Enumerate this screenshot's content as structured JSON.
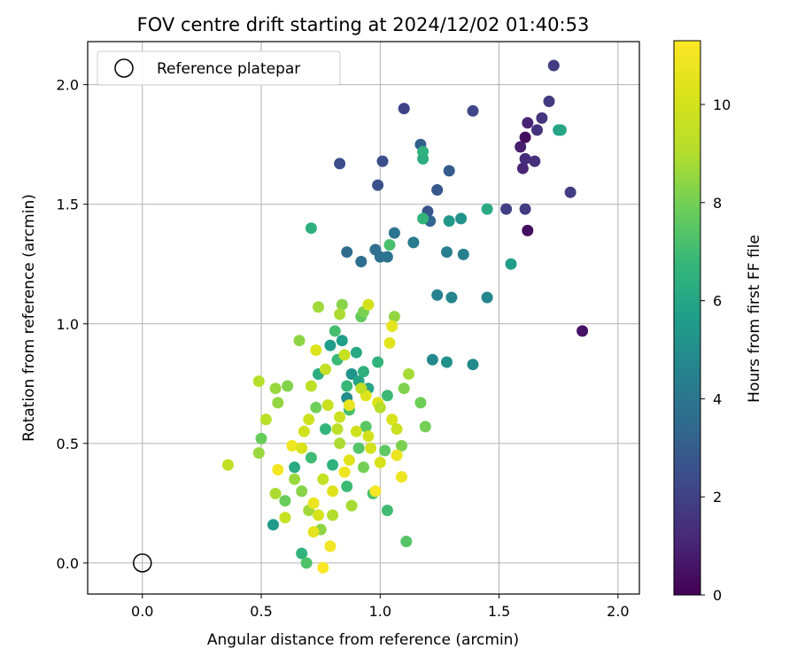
{
  "chart_data": {
    "type": "scatter",
    "title": "FOV centre drift starting at 2024/12/02 01:40:53",
    "xlabel": "Angular distance from reference (arcmin)",
    "ylabel": "Rotation from reference (arcmin)",
    "xlim": [
      -0.23,
      2.09
    ],
    "ylim": [
      -0.13,
      2.18
    ],
    "x_ticks": [
      0.0,
      0.5,
      1.0,
      1.5,
      2.0
    ],
    "y_ticks": [
      0.0,
      0.5,
      1.0,
      1.5,
      2.0
    ],
    "x_tick_labels": [
      "0.0",
      "0.5",
      "1.0",
      "1.5",
      "2.0"
    ],
    "y_tick_labels": [
      "0.0",
      "0.5",
      "1.0",
      "1.5",
      "2.0"
    ],
    "grid": true,
    "colormap": "viridis",
    "colorbar": {
      "label": "Hours from first FF file",
      "range": [
        0,
        11.3
      ],
      "ticks": [
        0,
        2,
        4,
        6,
        8,
        10
      ],
      "tick_labels": [
        "0",
        "2",
        "4",
        "6",
        "8",
        "10"
      ]
    },
    "legend": {
      "position": "top-left",
      "entries": [
        "Reference platepar"
      ]
    },
    "reference_point": {
      "x": 0.0,
      "y": 0.0
    },
    "series": [
      {
        "values": [
          [
            1.61,
            1.78,
            0.3
          ],
          [
            1.62,
            1.39,
            0.4
          ],
          [
            1.85,
            0.97,
            0.5
          ],
          [
            1.59,
            1.74,
            0.8
          ],
          [
            1.62,
            1.84,
            1.0
          ],
          [
            1.6,
            1.65,
            1.1
          ],
          [
            1.61,
            1.69,
            1.3
          ],
          [
            1.65,
            1.68,
            1.4
          ],
          [
            1.66,
            1.81,
            1.5
          ],
          [
            1.68,
            1.86,
            1.6
          ],
          [
            1.71,
            1.93,
            1.7
          ],
          [
            1.73,
            2.08,
            1.8
          ],
          [
            1.8,
            1.55,
            1.9
          ],
          [
            1.61,
            1.48,
            1.8
          ],
          [
            1.53,
            1.48,
            2.0
          ],
          [
            1.1,
            1.9,
            2.1
          ],
          [
            1.39,
            1.89,
            2.2
          ],
          [
            0.83,
            1.67,
            2.4
          ],
          [
            1.01,
            1.68,
            2.5
          ],
          [
            0.99,
            1.58,
            2.6
          ],
          [
            1.2,
            1.47,
            2.7
          ],
          [
            1.24,
            1.56,
            2.8
          ],
          [
            1.29,
            1.64,
            3.0
          ],
          [
            1.17,
            1.75,
            3.1
          ],
          [
            1.21,
            1.43,
            3.3
          ],
          [
            0.86,
            1.3,
            3.5
          ],
          [
            0.92,
            1.26,
            3.6
          ],
          [
            0.98,
            1.31,
            3.7
          ],
          [
            1.0,
            1.28,
            3.8
          ],
          [
            1.03,
            1.28,
            3.9
          ],
          [
            1.06,
            1.38,
            4.0
          ],
          [
            1.14,
            1.34,
            4.2
          ],
          [
            1.28,
            1.3,
            4.3
          ],
          [
            1.35,
            1.29,
            4.4
          ],
          [
            1.24,
            1.12,
            4.5
          ],
          [
            1.3,
            1.11,
            4.6
          ],
          [
            1.45,
            1.11,
            4.7
          ],
          [
            1.22,
            0.85,
            4.8
          ],
          [
            1.39,
            0.83,
            4.9
          ],
          [
            1.28,
            0.84,
            5.1
          ],
          [
            1.34,
            1.44,
            5.2
          ],
          [
            1.29,
            1.43,
            5.4
          ],
          [
            1.55,
            1.25,
            5.6
          ],
          [
            1.75,
            1.81,
            5.8
          ],
          [
            1.76,
            1.81,
            6.0
          ],
          [
            1.45,
            1.48,
            6.2
          ],
          [
            1.18,
            1.69,
            6.3
          ],
          [
            1.18,
            1.72,
            6.5
          ],
          [
            1.18,
            1.44,
            6.7
          ],
          [
            0.71,
            1.4,
            6.4
          ],
          [
            1.04,
            1.33,
            7.2
          ],
          [
            0.67,
            0.04,
            6.6
          ],
          [
            0.69,
            0.0,
            7.3
          ],
          [
            0.55,
            0.16,
            5.5
          ],
          [
            1.03,
            0.22,
            7.0
          ],
          [
            1.11,
            0.09,
            7.4
          ],
          [
            0.86,
            0.69,
            5.0
          ],
          [
            0.88,
            0.79,
            5.3
          ],
          [
            0.84,
            0.93,
            5.7
          ],
          [
            0.91,
            0.76,
            5.9
          ],
          [
            0.9,
            0.88,
            6.1
          ],
          [
            0.93,
            0.8,
            6.4
          ],
          [
            0.86,
            0.74,
            6.8
          ],
          [
            0.82,
            0.85,
            6.9
          ],
          [
            0.81,
            0.97,
            7.1
          ],
          [
            0.79,
            0.91,
            5.6
          ],
          [
            0.95,
            0.73,
            6.0
          ],
          [
            0.74,
            0.79,
            6.3
          ],
          [
            0.99,
            0.84,
            6.6
          ],
          [
            1.03,
            0.7,
            6.9
          ],
          [
            0.87,
            0.64,
            7.2
          ],
          [
            0.94,
            0.57,
            7.5
          ],
          [
            0.71,
            0.44,
            7.0
          ],
          [
            0.64,
            0.4,
            6.2
          ],
          [
            0.77,
            0.56,
            6.7
          ],
          [
            0.91,
            0.48,
            7.4
          ],
          [
            0.6,
            0.26,
            7.8
          ],
          [
            0.8,
            0.41,
            6.5
          ],
          [
            0.73,
            0.65,
            7.9
          ],
          [
            0.93,
            0.4,
            8.0
          ],
          [
            1.02,
            0.47,
            7.6
          ],
          [
            1.09,
            0.49,
            8.1
          ],
          [
            0.86,
            0.32,
            6.9
          ],
          [
            0.97,
            0.29,
            7.2
          ],
          [
            0.67,
            0.3,
            8.3
          ],
          [
            0.57,
            0.67,
            8.5
          ],
          [
            0.5,
            0.52,
            7.8
          ],
          [
            0.56,
            0.73,
            8.6
          ],
          [
            0.61,
            0.74,
            8.2
          ],
          [
            0.66,
            0.93,
            8.4
          ],
          [
            0.74,
            1.07,
            8.7
          ],
          [
            0.84,
            1.08,
            8.3
          ],
          [
            0.83,
            1.04,
            8.9
          ],
          [
            0.92,
            1.03,
            7.7
          ],
          [
            0.93,
            1.05,
            8.1
          ],
          [
            1.06,
            1.03,
            8.5
          ],
          [
            1.17,
            0.67,
            7.9
          ],
          [
            1.19,
            0.57,
            8.0
          ],
          [
            1.12,
            0.79,
            8.8
          ],
          [
            1.1,
            0.73,
            8.2
          ],
          [
            0.49,
            0.46,
            8.6
          ],
          [
            0.56,
            0.29,
            8.9
          ],
          [
            0.7,
            0.22,
            8.7
          ],
          [
            0.75,
            0.14,
            8.4
          ],
          [
            0.88,
            0.24,
            8.8
          ],
          [
            0.8,
            0.2,
            9.0
          ],
          [
            0.52,
            0.6,
            9.2
          ],
          [
            0.49,
            0.76,
            9.1
          ],
          [
            0.36,
            0.41,
            9.4
          ],
          [
            0.71,
            0.74,
            9.3
          ],
          [
            0.77,
            0.81,
            9.5
          ],
          [
            0.85,
            0.87,
            9.6
          ],
          [
            0.78,
            0.66,
            9.7
          ],
          [
            0.83,
            0.61,
            9.8
          ],
          [
            0.9,
            0.55,
            9.9
          ],
          [
            0.96,
            0.48,
            10.0
          ],
          [
            1.0,
            0.42,
            10.1
          ],
          [
            1.05,
            0.6,
            10.2
          ],
          [
            0.99,
            0.67,
            10.3
          ],
          [
            0.94,
            0.7,
            10.4
          ],
          [
            1.04,
            0.92,
            10.5
          ],
          [
            1.05,
            0.99,
            10.6
          ],
          [
            0.95,
            1.08,
            10.0
          ],
          [
            1.07,
            0.45,
            10.7
          ],
          [
            1.09,
            0.36,
            10.8
          ],
          [
            0.63,
            0.49,
            10.9
          ],
          [
            0.67,
            0.48,
            10.2
          ],
          [
            0.72,
            0.13,
            10.6
          ],
          [
            0.79,
            0.07,
            11.0
          ],
          [
            0.76,
            -0.02,
            11.2
          ],
          [
            0.72,
            0.25,
            10.8
          ],
          [
            0.74,
            0.2,
            10.1
          ],
          [
            0.8,
            0.3,
            10.4
          ],
          [
            0.85,
            0.38,
            10.9
          ],
          [
            0.87,
            0.43,
            10.5
          ],
          [
            0.98,
            0.3,
            11.1
          ],
          [
            0.57,
            0.39,
            11.0
          ],
          [
            0.6,
            0.19,
            9.6
          ],
          [
            0.82,
            0.56,
            9.3
          ],
          [
            0.87,
            0.66,
            10.7
          ],
          [
            0.7,
            0.6,
            9.8
          ],
          [
            0.73,
            0.89,
            10.3
          ],
          [
            0.76,
            0.35,
            9.5
          ],
          [
            0.68,
            0.55,
            9.9
          ],
          [
            0.92,
            0.73,
            9.4
          ],
          [
            0.95,
            0.53,
            10.0
          ],
          [
            0.83,
            0.5,
            8.9
          ],
          [
            1.0,
            0.65,
            9.1
          ],
          [
            1.07,
            0.56,
            9.7
          ],
          [
            0.64,
            0.35,
            8.6
          ]
        ]
      }
    ]
  }
}
